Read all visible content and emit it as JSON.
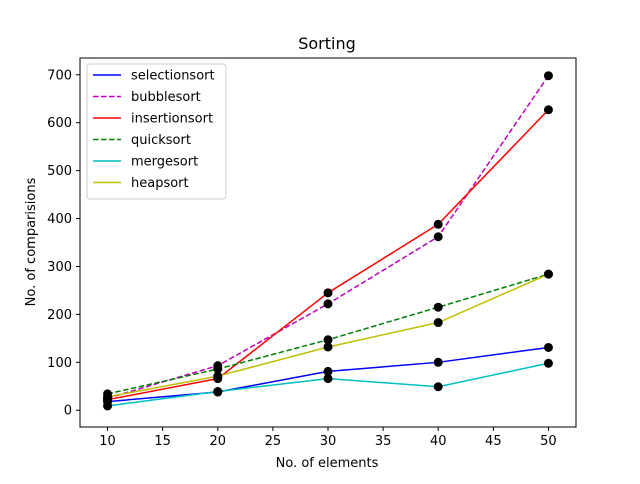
{
  "chart_data": {
    "type": "line",
    "title": "Sorting",
    "xlabel": "No. of elements",
    "ylabel": "No. of comparisions",
    "x": [
      10,
      20,
      30,
      40,
      50
    ],
    "xlim": [
      7.5,
      52.5
    ],
    "ylim": [
      -35,
      735
    ],
    "xticks": [
      10,
      15,
      20,
      25,
      30,
      35,
      40,
      45,
      50
    ],
    "yticks": [
      0,
      100,
      200,
      300,
      400,
      500,
      600,
      700
    ],
    "grid": false,
    "legend_position": "top-left",
    "marker_color": "#000000",
    "series": [
      {
        "name": "selectionsort",
        "color": "#0000ff",
        "dash": "solid",
        "values": [
          18,
          38,
          81,
          100,
          131
        ]
      },
      {
        "name": "bubblesort",
        "color": "#bf00bf",
        "dash": "dashed",
        "values": [
          25,
          93,
          222,
          362,
          698
        ]
      },
      {
        "name": "insertionsort",
        "color": "#ff0000",
        "dash": "solid",
        "values": [
          22,
          66,
          245,
          388,
          627
        ]
      },
      {
        "name": "quicksort",
        "color": "#008000",
        "dash": "dashed",
        "values": [
          34,
          86,
          147,
          215,
          284
        ]
      },
      {
        "name": "mergesort",
        "color": "#00bfbf",
        "dash": "solid",
        "values": [
          9,
          39,
          66,
          49,
          98
        ]
      },
      {
        "name": "heapsort",
        "color": "#bfbf00",
        "dash": "solid",
        "values": [
          28,
          71,
          132,
          183,
          284
        ]
      }
    ]
  }
}
